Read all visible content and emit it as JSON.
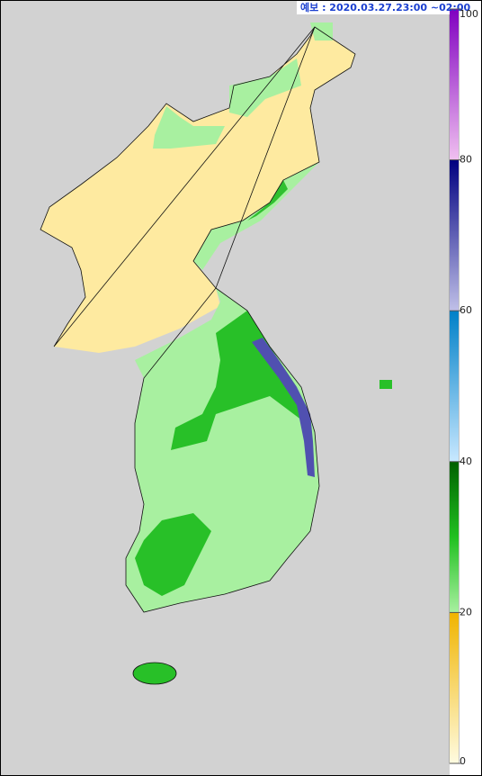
{
  "header": {
    "label": "예보 : 2020.03.27.23:00 ~02:00"
  },
  "legend": {
    "ticks": [
      0,
      20,
      40,
      60,
      80,
      100
    ]
  }
}
